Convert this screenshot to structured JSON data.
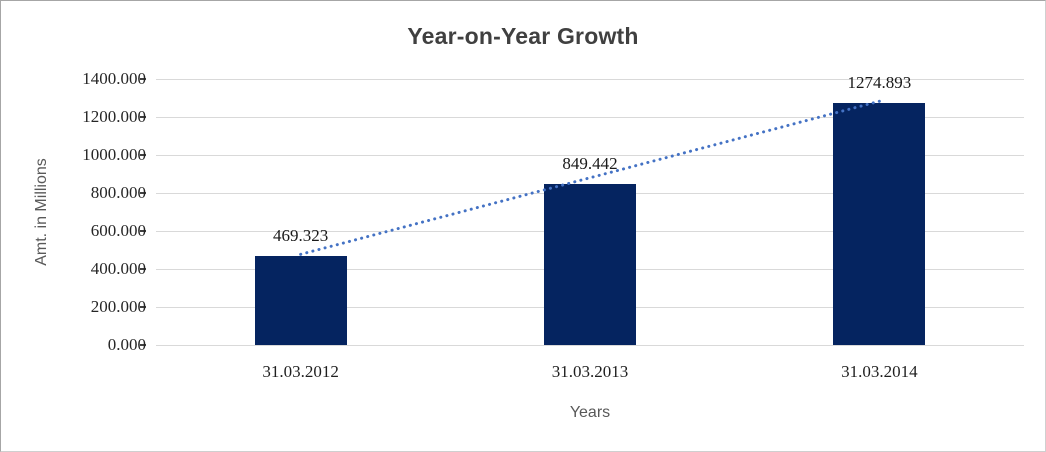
{
  "chart_data": {
    "type": "bar",
    "title": "Year-on-Year Growth",
    "xlabel": "Years",
    "ylabel": "Amt. in Millions",
    "categories": [
      "31.03.2012",
      "31.03.2013",
      "31.03.2014"
    ],
    "values": [
      469.323,
      849.442,
      1274.893
    ],
    "value_labels": [
      "469.323",
      "849.442",
      "1274.893"
    ],
    "ylim": [
      0,
      1400
    ],
    "ytick_interval": 200,
    "ytick_labels": [
      "0.000",
      "200.000",
      "400.000",
      "600.000",
      "800.000",
      "1000.000",
      "1200.000",
      "1400.000"
    ],
    "grid": "horizontal",
    "legend_position": "none",
    "trendline": {
      "type": "linear",
      "style": "dotted"
    },
    "colors": {
      "bar": "#052460",
      "trendline": "#4472c4",
      "gridline": "#d9d9d9",
      "tick_mark": "#404040",
      "title_text": "#404040",
      "axis_title_text": "#595959",
      "number_text": "#262626"
    }
  }
}
